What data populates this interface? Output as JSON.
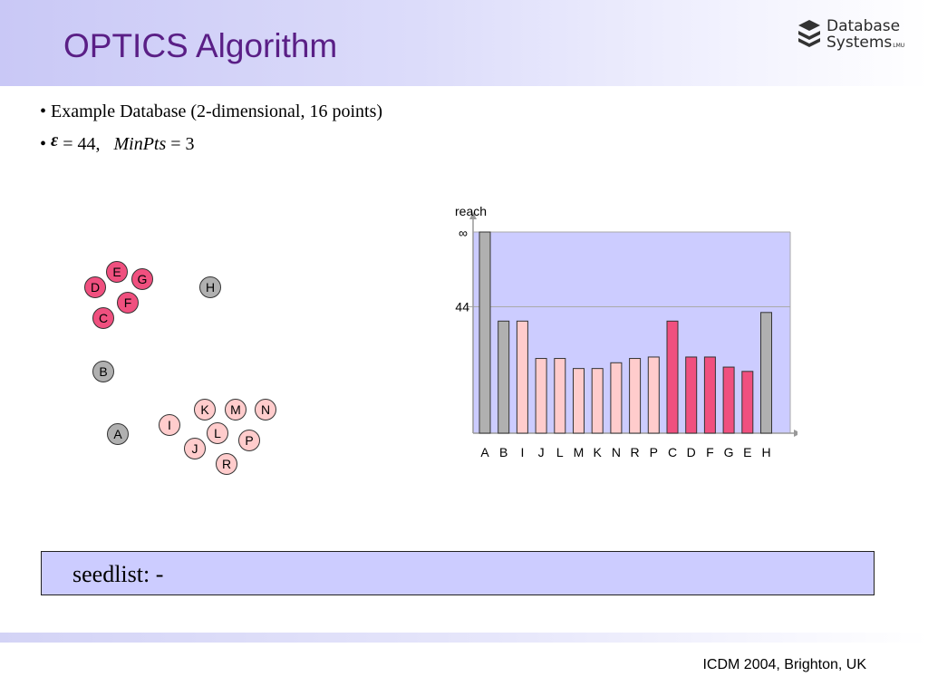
{
  "slide": {
    "title": "OPTICS Algorithm",
    "logo": {
      "line1": "Database",
      "line2": "Systems",
      "sub": "LMU"
    },
    "bullets": {
      "b1": "Example Database (2-dimensional, 16 points)",
      "eps_symbol": "ε",
      "eps_value": "= 44,",
      "minpts_name": "MinPts",
      "minpts_value": "= 3"
    },
    "seedlist": "seedlist: -",
    "footer": "ICDM  2004, Brighton, UK"
  },
  "points": [
    {
      "label": "E",
      "color": "pink"
    },
    {
      "label": "G",
      "color": "pink"
    },
    {
      "label": "D",
      "color": "pink"
    },
    {
      "label": "F",
      "color": "pink"
    },
    {
      "label": "C",
      "color": "pink"
    },
    {
      "label": "H",
      "color": "gray"
    },
    {
      "label": "B",
      "color": "gray"
    },
    {
      "label": "K",
      "color": "light"
    },
    {
      "label": "M",
      "color": "light"
    },
    {
      "label": "N",
      "color": "light"
    },
    {
      "label": "I",
      "color": "light"
    },
    {
      "label": "L",
      "color": "light"
    },
    {
      "label": "A",
      "color": "gray"
    },
    {
      "label": "P",
      "color": "light"
    },
    {
      "label": "J",
      "color": "light"
    },
    {
      "label": "R",
      "color": "light"
    }
  ],
  "colors": {
    "pink": "#f0507f",
    "light": "#ffcccc",
    "gray": "#b0b0b0",
    "plot_bg": "#ccccff"
  },
  "chart_data": {
    "type": "bar",
    "ylabel": "reach",
    "y_tick_labels": [
      "∞",
      "44"
    ],
    "categories": [
      "A",
      "B",
      "I",
      "J",
      "L",
      "M",
      "K",
      "N",
      "R",
      "P",
      "C",
      "D",
      "F",
      "G",
      "E",
      "H"
    ],
    "values": [
      70,
      39,
      39,
      26,
      26,
      22.5,
      22.5,
      24.5,
      26,
      26.5,
      39,
      26.5,
      26.5,
      23,
      21.5,
      42
    ],
    "infinite": [
      true,
      false,
      false,
      false,
      false,
      false,
      false,
      false,
      false,
      false,
      false,
      false,
      false,
      false,
      false,
      false
    ],
    "bar_colors": [
      "gray",
      "gray",
      "light",
      "light",
      "light",
      "light",
      "light",
      "light",
      "light",
      "light",
      "pink",
      "pink",
      "pink",
      "pink",
      "pink",
      "gray"
    ],
    "ylim": [
      0,
      70
    ],
    "threshold": 44
  }
}
